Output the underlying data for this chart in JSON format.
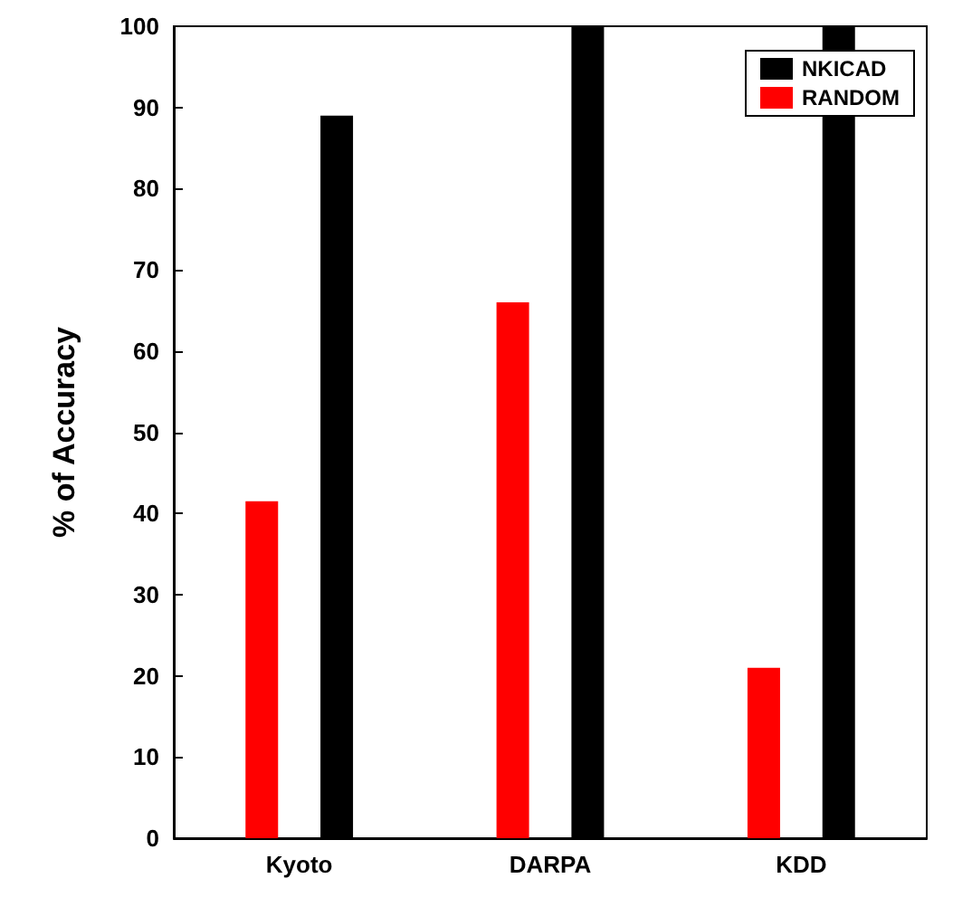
{
  "chart_data": {
    "type": "bar",
    "ylabel": "% of Accuracy",
    "categories": [
      "Kyoto",
      "DARPA",
      "KDD"
    ],
    "series": [
      {
        "name": "RANDOM",
        "color": "#ff0000",
        "values": [
          41.5,
          66,
          21
        ]
      },
      {
        "name": "NKICAD",
        "color": "#000000",
        "values": [
          89,
          100,
          100
        ]
      }
    ],
    "ylim": [
      0,
      100
    ],
    "yticks": [
      0,
      10,
      20,
      30,
      40,
      50,
      60,
      70,
      80,
      90,
      100
    ],
    "grid": false,
    "legend": "top right"
  }
}
